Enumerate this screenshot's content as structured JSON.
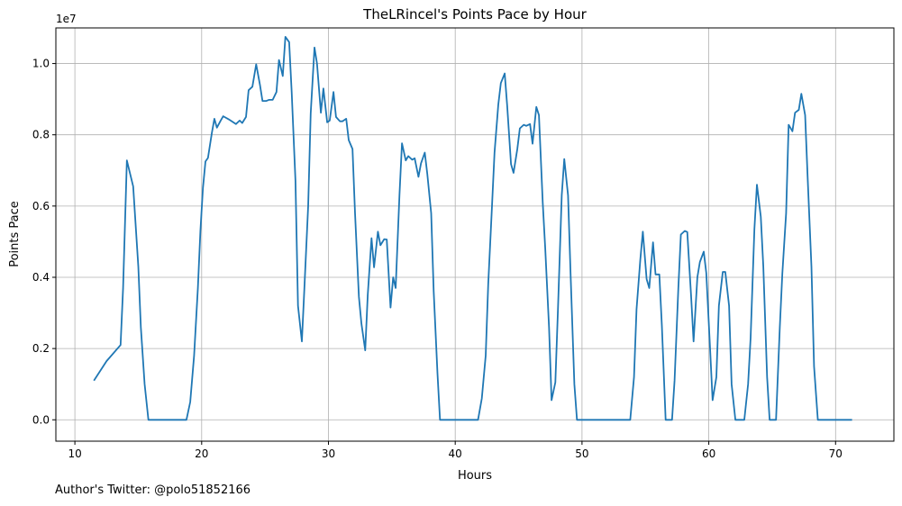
{
  "chart_data": {
    "type": "line",
    "title": "TheLRincel's Points Pace by Hour",
    "xlabel": "Hours",
    "ylabel": "Points Pace",
    "y_offset_label": "1e7",
    "xlim": [
      8.5,
      74.6
    ],
    "ylim": [
      -600000,
      11000000
    ],
    "x_ticks": [
      10,
      20,
      30,
      40,
      50,
      60,
      70
    ],
    "y_ticks": [
      0,
      2000000,
      4000000,
      6000000,
      8000000,
      10000000
    ],
    "y_tick_labels": [
      "0.0",
      "0.2",
      "0.4",
      "0.6",
      "0.8",
      "1.0"
    ],
    "grid": true,
    "series": [
      {
        "color": "#1f77b4",
        "points": [
          [
            11.5,
            1100000
          ],
          [
            12.5,
            1650000
          ],
          [
            13.6,
            2100000
          ],
          [
            13.8,
            3700000
          ],
          [
            14.1,
            7280000
          ],
          [
            14.6,
            6550000
          ],
          [
            15.0,
            4300000
          ],
          [
            15.2,
            2600000
          ],
          [
            15.5,
            1000000
          ],
          [
            15.8,
            0
          ],
          [
            17.0,
            0
          ],
          [
            18.8,
            0
          ],
          [
            19.1,
            500000
          ],
          [
            19.4,
            1800000
          ],
          [
            19.7,
            3700000
          ],
          [
            19.9,
            5300000
          ],
          [
            20.1,
            6500000
          ],
          [
            20.3,
            7250000
          ],
          [
            20.5,
            7350000
          ],
          [
            20.8,
            8050000
          ],
          [
            21.0,
            8450000
          ],
          [
            21.2,
            8200000
          ],
          [
            21.5,
            8400000
          ],
          [
            21.7,
            8520000
          ],
          [
            22.2,
            8420000
          ],
          [
            22.7,
            8300000
          ],
          [
            23.0,
            8400000
          ],
          [
            23.2,
            8330000
          ],
          [
            23.5,
            8500000
          ],
          [
            23.7,
            9250000
          ],
          [
            24.0,
            9350000
          ],
          [
            24.3,
            9980000
          ],
          [
            24.6,
            9400000
          ],
          [
            24.8,
            8950000
          ],
          [
            25.1,
            8950000
          ],
          [
            25.3,
            8980000
          ],
          [
            25.6,
            8980000
          ],
          [
            25.9,
            9200000
          ],
          [
            26.1,
            10100000
          ],
          [
            26.4,
            9650000
          ],
          [
            26.6,
            10750000
          ],
          [
            26.9,
            10600000
          ],
          [
            27.1,
            9200000
          ],
          [
            27.4,
            6700000
          ],
          [
            27.6,
            3200000
          ],
          [
            27.9,
            2200000
          ],
          [
            28.1,
            3700000
          ],
          [
            28.4,
            6000000
          ],
          [
            28.6,
            8600000
          ],
          [
            28.9,
            10450000
          ],
          [
            29.1,
            10000000
          ],
          [
            29.4,
            8620000
          ],
          [
            29.6,
            9300000
          ],
          [
            29.9,
            8350000
          ],
          [
            30.1,
            8400000
          ],
          [
            30.4,
            9200000
          ],
          [
            30.6,
            8500000
          ],
          [
            30.9,
            8380000
          ],
          [
            31.1,
            8380000
          ],
          [
            31.4,
            8450000
          ],
          [
            31.6,
            7850000
          ],
          [
            31.9,
            7600000
          ],
          [
            32.1,
            5800000
          ],
          [
            32.4,
            3450000
          ],
          [
            32.6,
            2700000
          ],
          [
            32.9,
            1950000
          ],
          [
            33.1,
            3500000
          ],
          [
            33.4,
            5100000
          ],
          [
            33.6,
            4280000
          ],
          [
            33.9,
            5280000
          ],
          [
            34.1,
            4900000
          ],
          [
            34.4,
            5070000
          ],
          [
            34.6,
            5060000
          ],
          [
            34.9,
            3150000
          ],
          [
            35.1,
            4000000
          ],
          [
            35.3,
            3700000
          ],
          [
            35.6,
            6300000
          ],
          [
            35.8,
            7760000
          ],
          [
            36.1,
            7280000
          ],
          [
            36.3,
            7400000
          ],
          [
            36.6,
            7300000
          ],
          [
            36.8,
            7340000
          ],
          [
            37.1,
            6820000
          ],
          [
            37.3,
            7200000
          ],
          [
            37.6,
            7500000
          ],
          [
            37.8,
            6900000
          ],
          [
            38.1,
            5800000
          ],
          [
            38.3,
            3600000
          ],
          [
            38.6,
            1300000
          ],
          [
            38.8,
            0
          ],
          [
            40.0,
            0
          ],
          [
            41.8,
            0
          ],
          [
            42.1,
            600000
          ],
          [
            42.4,
            1800000
          ],
          [
            42.6,
            3800000
          ],
          [
            42.9,
            6000000
          ],
          [
            43.1,
            7500000
          ],
          [
            43.4,
            8850000
          ],
          [
            43.6,
            9450000
          ],
          [
            43.9,
            9720000
          ],
          [
            44.1,
            8800000
          ],
          [
            44.4,
            7180000
          ],
          [
            44.6,
            6930000
          ],
          [
            44.9,
            7600000
          ],
          [
            45.1,
            8180000
          ],
          [
            45.4,
            8280000
          ],
          [
            45.6,
            8250000
          ],
          [
            45.9,
            8300000
          ],
          [
            46.1,
            7750000
          ],
          [
            46.4,
            8780000
          ],
          [
            46.6,
            8550000
          ],
          [
            46.9,
            6100000
          ],
          [
            47.1,
            4800000
          ],
          [
            47.4,
            2600000
          ],
          [
            47.6,
            550000
          ],
          [
            47.9,
            1050000
          ],
          [
            48.1,
            3100000
          ],
          [
            48.4,
            6300000
          ],
          [
            48.6,
            7320000
          ],
          [
            48.9,
            6300000
          ],
          [
            49.1,
            4100000
          ],
          [
            49.4,
            1000000
          ],
          [
            49.6,
            0
          ],
          [
            51.0,
            0
          ],
          [
            53.8,
            0
          ],
          [
            54.1,
            1200000
          ],
          [
            54.3,
            3100000
          ],
          [
            54.6,
            4500000
          ],
          [
            54.8,
            5280000
          ],
          [
            55.1,
            3950000
          ],
          [
            55.3,
            3700000
          ],
          [
            55.6,
            4980000
          ],
          [
            55.8,
            4080000
          ],
          [
            56.1,
            4080000
          ],
          [
            56.3,
            2650000
          ],
          [
            56.6,
            0
          ],
          [
            57.1,
            0
          ],
          [
            57.3,
            1100000
          ],
          [
            57.6,
            3700000
          ],
          [
            57.8,
            5200000
          ],
          [
            58.1,
            5300000
          ],
          [
            58.3,
            5270000
          ],
          [
            58.6,
            3500000
          ],
          [
            58.8,
            2200000
          ],
          [
            59.1,
            4000000
          ],
          [
            59.3,
            4430000
          ],
          [
            59.6,
            4720000
          ],
          [
            59.8,
            4120000
          ],
          [
            60.1,
            2000000
          ],
          [
            60.3,
            550000
          ],
          [
            60.6,
            1200000
          ],
          [
            60.8,
            3200000
          ],
          [
            61.1,
            4150000
          ],
          [
            61.3,
            4150000
          ],
          [
            61.6,
            3200000
          ],
          [
            61.8,
            1000000
          ],
          [
            62.1,
            0
          ],
          [
            62.8,
            0
          ],
          [
            63.1,
            1000000
          ],
          [
            63.3,
            2300000
          ],
          [
            63.6,
            5350000
          ],
          [
            63.8,
            6600000
          ],
          [
            64.1,
            5700000
          ],
          [
            64.3,
            4300000
          ],
          [
            64.6,
            1200000
          ],
          [
            64.8,
            0
          ],
          [
            65.3,
            0
          ],
          [
            65.6,
            2600000
          ],
          [
            65.8,
            4100000
          ],
          [
            66.1,
            5800000
          ],
          [
            66.3,
            8280000
          ],
          [
            66.6,
            8100000
          ],
          [
            66.8,
            8620000
          ],
          [
            67.1,
            8700000
          ],
          [
            67.3,
            9150000
          ],
          [
            67.6,
            8550000
          ],
          [
            67.8,
            6800000
          ],
          [
            68.1,
            4300000
          ],
          [
            68.3,
            1500000
          ],
          [
            68.6,
            0
          ],
          [
            70.0,
            0
          ],
          [
            71.3,
            0
          ]
        ]
      }
    ]
  },
  "footer": "Author's Twitter: @polo51852166"
}
